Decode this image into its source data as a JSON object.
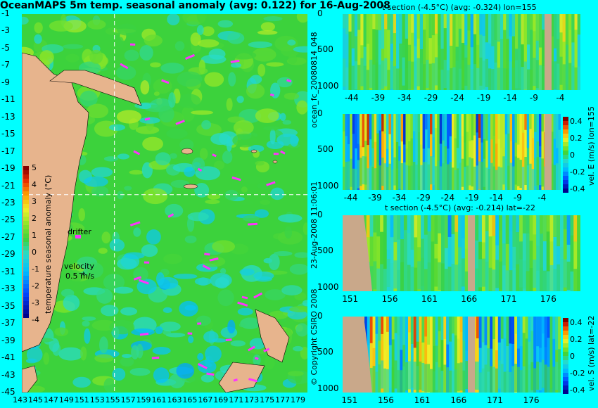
{
  "title": "OceanMAPS 5m temp. seasonal anomaly (avg: 0.122) for 16-Aug-2008",
  "colors": {
    "background": "#00ffff",
    "land": "#e7b48d",
    "section_land": "#c9a88a",
    "drifter": "#ff33ff"
  },
  "map": {
    "lat_ticks": [
      "-1",
      "-3",
      "-5",
      "-7",
      "-9",
      "-11",
      "-13",
      "-15",
      "-17",
      "-19",
      "-21",
      "-23",
      "-25",
      "-27",
      "-29",
      "-31",
      "-33",
      "-35",
      "-37",
      "-39",
      "-41",
      "-43",
      "-45"
    ],
    "lon_ticks": [
      "143",
      "145",
      "147",
      "149",
      "151",
      "153",
      "155",
      "157",
      "159",
      "161",
      "163",
      "165",
      "167",
      "169",
      "171",
      "173",
      "175",
      "177",
      "179"
    ],
    "labels": {
      "drifter": "drifter",
      "velocity": "velocity",
      "velocity_value": "0.5 m/s",
      "velocity_arrow": "→"
    },
    "colorbar": {
      "label": "temperature seasonal anomaly (°C)",
      "ticks": [
        "5",
        "4",
        "3",
        "2",
        "1",
        "0",
        "-1",
        "-2",
        "-3",
        "-4"
      ]
    }
  },
  "side_labels": {
    "left_1": "ocean_fc_20080814_048",
    "left_2": "23-Aug-2008 11:06:01",
    "left_3": "© Copyright CSIRO 2008"
  },
  "panels": {
    "p1": {
      "title": "t section (-4.5°C) (avg: -0.324) lon=155",
      "x_ticks": [
        "-44",
        "-39",
        "-34",
        "-29",
        "-24",
        "-19",
        "-14",
        "-9",
        "-4"
      ],
      "y_ticks": [
        "0",
        "500",
        "1000"
      ]
    },
    "p2": {
      "x_ticks": [
        "-44",
        "-39",
        "-34",
        "-29",
        "-24",
        "-19",
        "-14",
        "-9",
        "-4"
      ],
      "y_ticks": [
        "0",
        "500",
        "1000"
      ],
      "cbar_label": "vel. E (m/s) lon=155",
      "cbar_ticks": [
        "0.4",
        "0.2",
        "0",
        "-0.2",
        "-0.4"
      ]
    },
    "p3": {
      "title": "t section (-4.5°C) (avg: -0.214) lat=-22",
      "x_ticks": [
        "151",
        "156",
        "161",
        "166",
        "171",
        "176"
      ],
      "y_ticks": [
        "0",
        "500",
        "1000"
      ]
    },
    "p4": {
      "x_ticks": [
        "151",
        "156",
        "161",
        "166",
        "171",
        "176"
      ],
      "y_ticks": [
        "0",
        "500",
        "1000"
      ],
      "cbar_label": "vel. S (m/s) lat=-22",
      "cbar_ticks": [
        "0.4",
        "0.2",
        "0",
        "-0.2",
        "-0.4"
      ]
    }
  },
  "chart_data": [
    {
      "type": "heatmap",
      "title": "OceanMAPS 5m temp. seasonal anomaly (avg: 0.122) for 16-Aug-2008",
      "xlabel": "",
      "ylabel": "",
      "xlim": [
        143,
        180
      ],
      "ylim": [
        -45,
        -1
      ],
      "colorbar_label": "temperature seasonal anomaly (°C)",
      "colorbar_range": [
        -4,
        5
      ],
      "crosshair": {
        "lon": 155,
        "lat": -22
      }
    },
    {
      "type": "heatmap",
      "title": "t section (-4.5°C) (avg: -0.324) lon=155",
      "xlim": [
        -46,
        -1
      ],
      "ylim": [
        1050,
        0
      ]
    },
    {
      "type": "heatmap",
      "title": "",
      "xlim": [
        -46,
        -1
      ],
      "ylim": [
        1050,
        0
      ],
      "colorbar_label": "vel. E (m/s) lon=155",
      "colorbar_range": [
        -0.4,
        0.5
      ]
    },
    {
      "type": "heatmap",
      "title": "t section (-4.5°C) (avg: -0.214) lat=-22",
      "xlim": [
        150,
        180
      ],
      "ylim": [
        1050,
        0
      ]
    },
    {
      "type": "heatmap",
      "title": "",
      "xlim": [
        150,
        180
      ],
      "ylim": [
        1050,
        0
      ],
      "colorbar_label": "vel. S (m/s) lat=-22",
      "colorbar_range": [
        -0.4,
        0.5
      ]
    }
  ]
}
